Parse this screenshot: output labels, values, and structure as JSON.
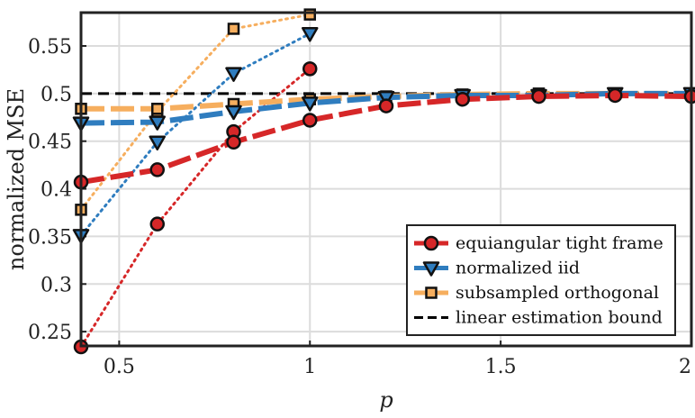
{
  "chart_data": {
    "type": "line",
    "xlabel": "p",
    "ylabel": "normalized MSE",
    "xlim": [
      0.4,
      2.0
    ],
    "ylim": [
      0.235,
      0.585
    ],
    "xticks": [
      0.5,
      1,
      1.5,
      2
    ],
    "xtick_labels": [
      "0.5",
      "1",
      "1.5",
      "2"
    ],
    "yticks": [
      0.25,
      0.3,
      0.35,
      0.4,
      0.45,
      0.5,
      0.55
    ],
    "ytick_labels": [
      "0.25",
      "0.3",
      "0.35",
      "0.4",
      "0.45",
      "0.5",
      "0.55"
    ],
    "grid": true,
    "legend_position": "bottom-right",
    "series": [
      {
        "name": "equiangular tight frame (dashed)",
        "color": "#d62728",
        "style": "dashed-thick",
        "marker": "circle",
        "x": [
          0.4,
          0.6,
          0.8,
          1.0,
          1.2,
          1.4,
          1.6,
          1.8,
          2.0
        ],
        "y": [
          0.407,
          0.42,
          0.449,
          0.472,
          0.487,
          0.494,
          0.497,
          0.498,
          0.497
        ]
      },
      {
        "name": "equiangular tight frame (dotted)",
        "color": "#d62728",
        "style": "dotted",
        "marker": "circle",
        "x": [
          0.4,
          0.6,
          0.8,
          1.0
        ],
        "y": [
          0.234,
          0.363,
          0.46,
          0.526
        ]
      },
      {
        "name": "normalized iid (dashed)",
        "color": "#2f7dbf",
        "style": "dashed-thick",
        "marker": "triangle-down",
        "x": [
          0.4,
          0.6,
          0.8,
          1.0,
          1.2,
          1.4,
          1.6,
          1.8,
          2.0
        ],
        "y": [
          0.469,
          0.47,
          0.481,
          0.49,
          0.496,
          0.498,
          0.498,
          0.5,
          0.5
        ]
      },
      {
        "name": "normalized iid (dotted)",
        "color": "#2f7dbf",
        "style": "dotted",
        "marker": "triangle-down",
        "x": [
          0.4,
          0.6,
          0.8,
          1.0
        ],
        "y": [
          0.351,
          0.449,
          0.521,
          0.563
        ]
      },
      {
        "name": "subsampled orthogonal (dashed)",
        "color": "#f6ae5e",
        "style": "dashed-thick",
        "marker": "square",
        "x": [
          0.4,
          0.6,
          0.8,
          1.0,
          1.2,
          1.4,
          1.6,
          1.8,
          2.0
        ],
        "y": [
          0.484,
          0.484,
          0.489,
          0.494,
          0.497,
          0.499,
          0.5,
          0.5,
          0.5
        ]
      },
      {
        "name": "subsampled orthogonal (dotted)",
        "color": "#f6ae5e",
        "style": "dotted",
        "marker": "square",
        "x": [
          0.4,
          0.6,
          0.8,
          1.0
        ],
        "y": [
          0.378,
          0.481,
          0.568,
          0.583
        ]
      },
      {
        "name": "linear estimation bound",
        "color": "#000000",
        "style": "dashed-black",
        "marker": "none",
        "x": [
          0.4,
          2.0
        ],
        "y": [
          0.5,
          0.5
        ]
      }
    ],
    "legend": [
      {
        "label": "equiangular tight frame",
        "color": "#d62728",
        "marker": "circle"
      },
      {
        "label": "normalized iid",
        "color": "#2f7dbf",
        "marker": "triangle-down"
      },
      {
        "label": "subsampled orthogonal",
        "color": "#f6ae5e",
        "marker": "square"
      },
      {
        "label": "linear estimation bound",
        "color": "#000000",
        "marker": "none"
      }
    ]
  }
}
